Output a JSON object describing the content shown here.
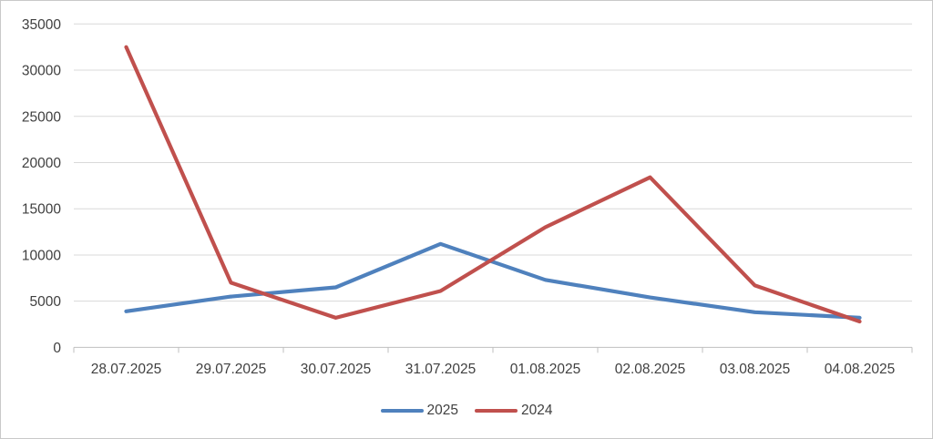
{
  "chart_data": {
    "type": "line",
    "title": "",
    "xlabel": "",
    "ylabel": "",
    "categories": [
      "28.07.2025",
      "29.07.2025",
      "30.07.2025",
      "31.07.2025",
      "01.08.2025",
      "02.08.2025",
      "03.08.2025",
      "04.08.2025"
    ],
    "series": [
      {
        "name": "2025",
        "color": "#4F81BD",
        "values": [
          3900,
          5500,
          6500,
          11200,
          7300,
          5400,
          3800,
          3200
        ]
      },
      {
        "name": "2024",
        "color": "#C0504D",
        "values": [
          32500,
          7000,
          3200,
          6100,
          13000,
          18400,
          6700,
          2800
        ]
      }
    ],
    "ylim": [
      0,
      35000
    ],
    "yticks": [
      0,
      5000,
      10000,
      15000,
      20000,
      25000,
      30000,
      35000
    ],
    "grid": true,
    "legend_position": "bottom"
  },
  "colors": {
    "background": "#FFFFFF",
    "border": "#C9C9C9",
    "gridline": "#D9D9D9",
    "axis_line": "#BFBFBF",
    "tick": "#BFBFBF",
    "axis_text": "#404040"
  }
}
